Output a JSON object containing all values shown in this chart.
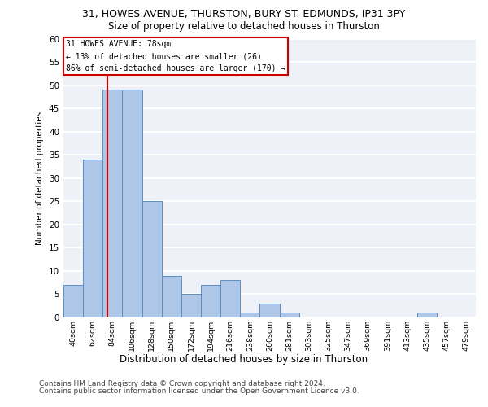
{
  "title_line1": "31, HOWES AVENUE, THURSTON, BURY ST. EDMUNDS, IP31 3PY",
  "title_line2": "Size of property relative to detached houses in Thurston",
  "xlabel": "Distribution of detached houses by size in Thurston",
  "ylabel": "Number of detached properties",
  "footer_line1": "Contains HM Land Registry data © Crown copyright and database right 2024.",
  "footer_line2": "Contains public sector information licensed under the Open Government Licence v3.0.",
  "bar_labels": [
    "40sqm",
    "62sqm",
    "84sqm",
    "106sqm",
    "128sqm",
    "150sqm",
    "172sqm",
    "194sqm",
    "216sqm",
    "238sqm",
    "260sqm",
    "281sqm",
    "303sqm",
    "325sqm",
    "347sqm",
    "369sqm",
    "391sqm",
    "413sqm",
    "435sqm",
    "457sqm",
    "479sqm"
  ],
  "bar_values": [
    7,
    34,
    49,
    49,
    25,
    9,
    5,
    7,
    8,
    1,
    3,
    1,
    0,
    0,
    0,
    0,
    0,
    0,
    1,
    0,
    0
  ],
  "bar_color": "#aec6e8",
  "bar_edge_color": "#5a8fc2",
  "ylim": [
    0,
    60
  ],
  "yticks": [
    0,
    5,
    10,
    15,
    20,
    25,
    30,
    35,
    40,
    45,
    50,
    55,
    60
  ],
  "property_label": "31 HOWES AVENUE: 78sqm",
  "annotation_line1": "← 13% of detached houses are smaller (26)",
  "annotation_line2": "86% of semi-detached houses are larger (170) →",
  "vline_color": "#cc0000",
  "bg_color": "#eef2f8",
  "grid_color": "#ffffff",
  "vline_x_index": 1.727
}
